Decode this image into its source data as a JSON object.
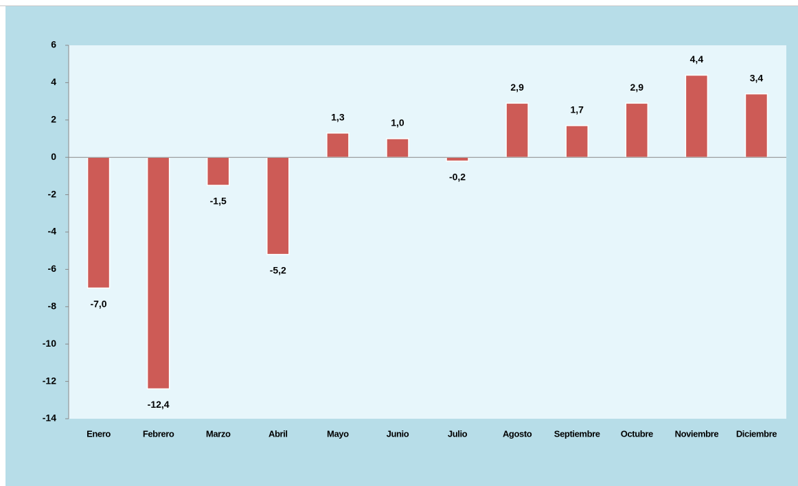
{
  "chart_data": {
    "type": "bar",
    "categories": [
      "Enero",
      "Febrero",
      "Marzo",
      "Abril",
      "Mayo",
      "Junio",
      "Julio",
      "Agosto",
      "Septiembre",
      "Octubre",
      "Noviembre",
      "Diciembre"
    ],
    "values": [
      -7.0,
      -12.4,
      -1.5,
      -5.2,
      1.3,
      1.0,
      -0.2,
      2.9,
      1.7,
      2.9,
      4.4,
      3.4
    ],
    "value_labels": [
      "-7,0",
      "-12,4",
      "-1,5",
      "-5,2",
      "1,3",
      "1,0",
      "-0,2",
      "2,9",
      "1,7",
      "2,9",
      "4,4",
      "3,4"
    ],
    "color": "#cd5b56",
    "ylim": [
      -14,
      6
    ],
    "yticks": [
      -14,
      -12,
      -10,
      -8,
      -6,
      -4,
      -2,
      0,
      2,
      4,
      6
    ],
    "grid": false
  }
}
